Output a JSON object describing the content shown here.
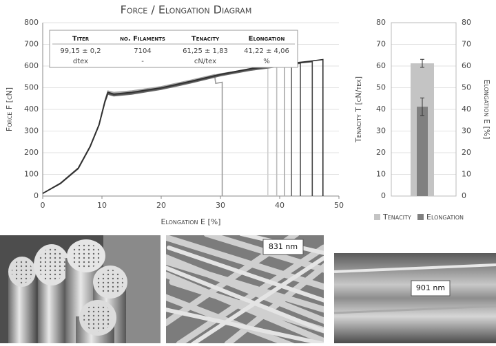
{
  "chart_data": [
    {
      "type": "line",
      "title": "Force / Elongation Diagram",
      "xlabel": "Elongation E [%]",
      "ylabel": "Force F [cN]",
      "xlim": [
        0,
        50
      ],
      "xticks": [
        0,
        10,
        20,
        30,
        40,
        50
      ],
      "ylim": [
        0,
        800
      ],
      "yticks": [
        0,
        100,
        200,
        300,
        400,
        500,
        600,
        700,
        800
      ],
      "table": {
        "headers": [
          "Titer",
          "no. Filaments",
          "Tenacity",
          "Elongation"
        ],
        "rows": [
          [
            "99,15 ± 0,2",
            "7104",
            "61,25 ± 1,83",
            "41,22 ± 4,06"
          ],
          [
            "dtex",
            "-",
            "cN/tex",
            "%"
          ]
        ]
      },
      "series": [
        {
          "color": "#9a9a9a",
          "x": [
            0,
            3,
            6,
            8,
            9.5,
            10.5,
            11,
            12,
            15,
            20,
            25,
            29,
            29.2,
            30.3,
            30.3
          ],
          "values": [
            12,
            60,
            130,
            230,
            330,
            440,
            485,
            478,
            485,
            505,
            535,
            560,
            520,
            525,
            0
          ]
        },
        {
          "color": "#cfcfcf",
          "x": [
            0,
            3,
            6,
            8,
            9.5,
            10.5,
            11,
            12,
            15,
            20,
            25,
            30,
            35,
            38,
            38
          ],
          "values": [
            12,
            58,
            128,
            228,
            328,
            438,
            480,
            472,
            480,
            500,
            530,
            560,
            580,
            592,
            0
          ]
        },
        {
          "color": "#bdbdbd",
          "x": [
            0,
            3,
            6,
            8,
            9.5,
            10.5,
            11,
            12,
            15,
            20,
            25,
            30,
            35,
            39.5,
            39.5
          ],
          "values": [
            12,
            59,
            129,
            229,
            329,
            439,
            482,
            474,
            482,
            502,
            532,
            562,
            582,
            598,
            0
          ]
        },
        {
          "color": "#a8a8a8",
          "x": [
            0,
            3,
            6,
            8,
            9.5,
            10.5,
            11,
            12,
            15,
            20,
            25,
            30,
            35,
            40,
            40.8,
            40.8
          ],
          "values": [
            12,
            60,
            130,
            230,
            330,
            440,
            484,
            476,
            484,
            504,
            534,
            564,
            585,
            600,
            604,
            0
          ]
        },
        {
          "color": "#6a6a6a",
          "x": [
            0,
            3,
            6,
            8,
            9.5,
            10.5,
            11,
            12,
            15,
            20,
            25,
            30,
            35,
            40,
            42,
            42
          ],
          "values": [
            12,
            57,
            126,
            226,
            326,
            432,
            470,
            462,
            470,
            492,
            522,
            555,
            580,
            598,
            606,
            0
          ]
        },
        {
          "color": "#555555",
          "x": [
            0,
            3,
            6,
            8,
            9.5,
            10.5,
            11,
            12,
            15,
            20,
            25,
            30,
            35,
            40,
            43.5,
            43.5
          ],
          "values": [
            12,
            58,
            127,
            227,
            327,
            434,
            474,
            466,
            474,
            496,
            526,
            558,
            584,
            602,
            612,
            0
          ]
        },
        {
          "color": "#444444",
          "x": [
            0,
            3,
            6,
            8,
            9.5,
            10.5,
            11,
            12,
            15,
            20,
            25,
            30,
            35,
            40,
            45.5,
            45.5
          ],
          "values": [
            12,
            59,
            128,
            228,
            328,
            436,
            477,
            469,
            477,
            498,
            528,
            560,
            586,
            605,
            620,
            0
          ]
        },
        {
          "color": "#2f2f2f",
          "x": [
            0,
            3,
            6,
            8,
            9.5,
            10.5,
            11,
            12,
            15,
            20,
            25,
            30,
            35,
            40,
            45,
            47.3,
            47.3
          ],
          "values": [
            12,
            59,
            129,
            229,
            329,
            437,
            479,
            471,
            479,
            500,
            530,
            562,
            588,
            607,
            622,
            630,
            0
          ]
        }
      ]
    },
    {
      "type": "bar",
      "ylabel": "Tenacity T [cN/tex]",
      "y2label": "Elongation E [%]",
      "ylim": [
        0,
        80
      ],
      "yticks": [
        0,
        10,
        20,
        30,
        40,
        50,
        60,
        70,
        80
      ],
      "y2lim": [
        0,
        80
      ],
      "y2ticks": [
        0,
        10,
        20,
        30,
        40,
        50,
        60,
        70,
        80
      ],
      "series": [
        {
          "name": "Tenacity",
          "color": "#c4c4c4",
          "value": 61.25,
          "error": 1.83
        },
        {
          "name": "Elongation",
          "color": "#808080",
          "value": 41.22,
          "error": 4.06,
          "axis": "y2"
        }
      ]
    }
  ],
  "micrographs": [
    {
      "scale_label": "831 nm"
    },
    {
      "scale_label": "901 nm"
    }
  ]
}
